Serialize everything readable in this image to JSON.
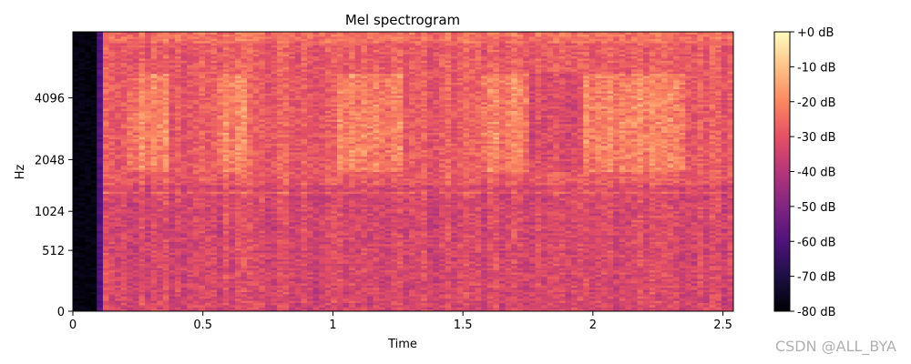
{
  "chart_data": {
    "type": "heatmap",
    "title": "Mel spectrogram",
    "xlabel": "Time",
    "ylabel": "Hz",
    "x_ticks": [
      0,
      0.5,
      1,
      1.5,
      2,
      2.5
    ],
    "x_tick_labels": [
      "0",
      "0.5",
      "1",
      "1.5",
      "2",
      "2.5"
    ],
    "xlim": [
      0,
      2.54
    ],
    "y_ticks": [
      0,
      512,
      1024,
      2048,
      4096
    ],
    "y_tick_labels": [
      "0",
      "512",
      "1024",
      "2048",
      "4096"
    ],
    "y_scale": "mel",
    "ylim": [
      0,
      8000
    ],
    "colorbar": {
      "range_db": [
        -80,
        0
      ],
      "ticks": [
        0,
        -10,
        -20,
        -30,
        -40,
        -50,
        -60,
        -70,
        -80
      ],
      "tick_labels": [
        "+0 dB",
        "-10 dB",
        "-20 dB",
        "-30 dB",
        "-40 dB",
        "-50 dB",
        "-60 dB",
        "-70 dB",
        "-80 dB"
      ],
      "colormap": "magma"
    },
    "approximate_features": {
      "silence_until_s": 0.09,
      "typical_level_db": -28,
      "louder_regions_s": [
        [
          0.2,
          0.35
        ],
        [
          0.55,
          0.65
        ],
        [
          1.0,
          1.25
        ],
        [
          1.55,
          1.75
        ],
        [
          1.95,
          2.35
        ]
      ],
      "quiet_region_s": [
        1.75,
        1.95
      ],
      "steady_tone_hz": 1350
    }
  },
  "watermark": "CSDN @ALL_BYA"
}
